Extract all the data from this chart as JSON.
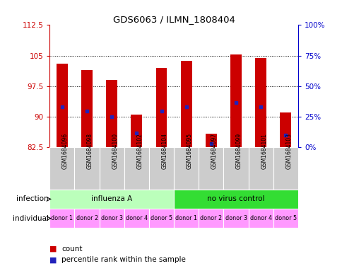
{
  "title": "GDS6063 / ILMN_1808404",
  "samples": [
    "GSM1684096",
    "GSM1684098",
    "GSM1684100",
    "GSM1684102",
    "GSM1684104",
    "GSM1684095",
    "GSM1684097",
    "GSM1684099",
    "GSM1684101",
    "GSM1684103"
  ],
  "bar_bottoms": [
    82.5,
    82.5,
    82.5,
    82.5,
    82.5,
    82.5,
    82.5,
    82.5,
    82.5,
    82.5
  ],
  "bar_tops": [
    103.0,
    101.5,
    99.0,
    90.5,
    102.0,
    103.8,
    85.8,
    105.2,
    104.5,
    91.0
  ],
  "blue_marks": [
    92.5,
    91.5,
    90.0,
    86.0,
    91.5,
    92.5,
    83.5,
    93.5,
    92.5,
    85.5
  ],
  "ylim": [
    82.5,
    112.5
  ],
  "yticks": [
    82.5,
    90.0,
    97.5,
    105.0,
    112.5
  ],
  "ytick_labels": [
    "82.5",
    "90",
    "97.5",
    "105",
    "112.5"
  ],
  "right_ytick_positions": [
    82.5,
    90.0,
    97.5,
    105.0,
    112.5
  ],
  "right_ytick_labels": [
    "0%",
    "25%",
    "50%",
    "75%",
    "100%"
  ],
  "infection_groups": [
    {
      "label": "influenza A",
      "start": 0,
      "end": 5,
      "color": "#bbffbb"
    },
    {
      "label": "no virus control",
      "start": 5,
      "end": 10,
      "color": "#33dd33"
    }
  ],
  "individual_labels": [
    "donor 1",
    "donor 2",
    "donor 3",
    "donor 4",
    "donor 5",
    "donor 1",
    "donor 2",
    "donor 3",
    "donor 4",
    "donor 5"
  ],
  "individual_color": "#ff99ff",
  "bar_color": "#cc0000",
  "blue_color": "#2222bb",
  "bg_color": "#ffffff",
  "plot_bg": "#ffffff",
  "left_axis_color": "#cc0000",
  "right_axis_color": "#0000cc",
  "xlabel_tick_bg": "#cccccc",
  "row_label_infection": "infection",
  "row_label_individual": "individual"
}
